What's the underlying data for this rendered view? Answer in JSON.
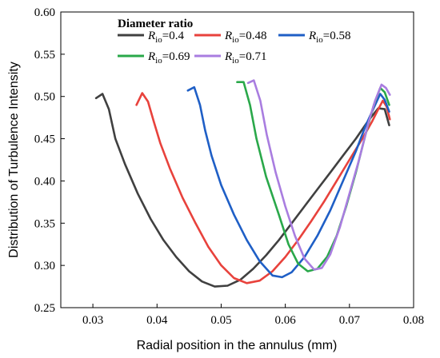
{
  "chart_data": {
    "type": "line",
    "xlabel": "Radial position in the annulus (mm)",
    "ylabel": "Distribution of Turbulence Intensity",
    "xlim": [
      0.025,
      0.08
    ],
    "ylim": [
      0.25,
      0.6
    ],
    "x_ticks": [
      "0.03",
      "0.04",
      "0.05",
      "0.06",
      "0.07",
      "0.08"
    ],
    "y_ticks": [
      "0.25",
      "0.30",
      "0.35",
      "0.40",
      "0.45",
      "0.50",
      "0.55",
      "0.60"
    ],
    "grid": false,
    "legend": {
      "title": "Diameter ratio",
      "placement": "top-left",
      "rows": [
        [
          "Rio=0.4",
          "Rio=0.48",
          "Rio=0.58"
        ],
        [
          "Rio=0.69",
          "Rio=0.71"
        ]
      ]
    },
    "series": [
      {
        "name": "Rio=0.4",
        "label_main": "R",
        "label_sub": "io",
        "label_value": "=0.4",
        "color": "#404040",
        "points": [
          [
            0.0305,
            0.498
          ],
          [
            0.0315,
            0.503
          ],
          [
            0.0325,
            0.485
          ],
          [
            0.0335,
            0.45
          ],
          [
            0.035,
            0.42
          ],
          [
            0.037,
            0.385
          ],
          [
            0.039,
            0.355
          ],
          [
            0.041,
            0.33
          ],
          [
            0.043,
            0.31
          ],
          [
            0.045,
            0.293
          ],
          [
            0.047,
            0.281
          ],
          [
            0.049,
            0.275
          ],
          [
            0.051,
            0.276
          ],
          [
            0.053,
            0.283
          ],
          [
            0.055,
            0.296
          ],
          [
            0.057,
            0.312
          ],
          [
            0.059,
            0.33
          ],
          [
            0.061,
            0.35
          ],
          [
            0.063,
            0.37
          ],
          [
            0.065,
            0.39
          ],
          [
            0.067,
            0.41
          ],
          [
            0.069,
            0.43
          ],
          [
            0.071,
            0.45
          ],
          [
            0.073,
            0.472
          ],
          [
            0.0745,
            0.486
          ],
          [
            0.0755,
            0.485
          ],
          [
            0.0762,
            0.466
          ]
        ]
      },
      {
        "name": "Rio=0.48",
        "label_main": "R",
        "label_sub": "io",
        "label_value": "=0.48",
        "color": "#e8423c",
        "points": [
          [
            0.0368,
            0.49
          ],
          [
            0.0377,
            0.504
          ],
          [
            0.0386,
            0.494
          ],
          [
            0.0395,
            0.47
          ],
          [
            0.0405,
            0.445
          ],
          [
            0.042,
            0.415
          ],
          [
            0.044,
            0.38
          ],
          [
            0.046,
            0.35
          ],
          [
            0.048,
            0.322
          ],
          [
            0.05,
            0.3
          ],
          [
            0.052,
            0.285
          ],
          [
            0.054,
            0.279
          ],
          [
            0.056,
            0.282
          ],
          [
            0.058,
            0.293
          ],
          [
            0.06,
            0.31
          ],
          [
            0.062,
            0.33
          ],
          [
            0.064,
            0.352
          ],
          [
            0.066,
            0.375
          ],
          [
            0.068,
            0.4
          ],
          [
            0.07,
            0.425
          ],
          [
            0.072,
            0.45
          ],
          [
            0.0735,
            0.47
          ],
          [
            0.0745,
            0.485
          ],
          [
            0.0752,
            0.495
          ],
          [
            0.0758,
            0.488
          ],
          [
            0.0763,
            0.473
          ]
        ]
      },
      {
        "name": "Rio=0.58",
        "label_main": "R",
        "label_sub": "io",
        "label_value": "=0.58",
        "color": "#1f5fc6",
        "points": [
          [
            0.0448,
            0.507
          ],
          [
            0.0458,
            0.511
          ],
          [
            0.0467,
            0.49
          ],
          [
            0.0475,
            0.46
          ],
          [
            0.0485,
            0.43
          ],
          [
            0.05,
            0.395
          ],
          [
            0.052,
            0.36
          ],
          [
            0.054,
            0.33
          ],
          [
            0.056,
            0.305
          ],
          [
            0.058,
            0.288
          ],
          [
            0.0595,
            0.286
          ],
          [
            0.061,
            0.292
          ],
          [
            0.063,
            0.31
          ],
          [
            0.065,
            0.335
          ],
          [
            0.067,
            0.365
          ],
          [
            0.069,
            0.4
          ],
          [
            0.071,
            0.435
          ],
          [
            0.0725,
            0.465
          ],
          [
            0.074,
            0.49
          ],
          [
            0.0748,
            0.503
          ],
          [
            0.0755,
            0.496
          ],
          [
            0.0762,
            0.482
          ]
        ]
      },
      {
        "name": "Rio=0.69",
        "label_main": "R",
        "label_sub": "io",
        "label_value": "=0.69",
        "color": "#2aa84a",
        "points": [
          [
            0.0525,
            0.517
          ],
          [
            0.0535,
            0.517
          ],
          [
            0.0545,
            0.49
          ],
          [
            0.0555,
            0.45
          ],
          [
            0.057,
            0.405
          ],
          [
            0.059,
            0.36
          ],
          [
            0.0605,
            0.325
          ],
          [
            0.062,
            0.302
          ],
          [
            0.0635,
            0.293
          ],
          [
            0.065,
            0.296
          ],
          [
            0.0665,
            0.31
          ],
          [
            0.068,
            0.335
          ],
          [
            0.0695,
            0.37
          ],
          [
            0.071,
            0.41
          ],
          [
            0.0725,
            0.455
          ],
          [
            0.0738,
            0.49
          ],
          [
            0.0748,
            0.51
          ],
          [
            0.0755,
            0.505
          ],
          [
            0.0762,
            0.49
          ]
        ]
      },
      {
        "name": "Rio=0.71",
        "label_main": "R",
        "label_sub": "io",
        "label_value": "=0.71",
        "color": "#a97de0",
        "points": [
          [
            0.0542,
            0.516
          ],
          [
            0.0551,
            0.519
          ],
          [
            0.0561,
            0.495
          ],
          [
            0.0571,
            0.455
          ],
          [
            0.0585,
            0.41
          ],
          [
            0.06,
            0.37
          ],
          [
            0.0615,
            0.335
          ],
          [
            0.063,
            0.308
          ],
          [
            0.0645,
            0.295
          ],
          [
            0.0657,
            0.297
          ],
          [
            0.067,
            0.313
          ],
          [
            0.0685,
            0.345
          ],
          [
            0.07,
            0.385
          ],
          [
            0.0715,
            0.425
          ],
          [
            0.073,
            0.47
          ],
          [
            0.074,
            0.495
          ],
          [
            0.075,
            0.514
          ],
          [
            0.0757,
            0.51
          ],
          [
            0.0763,
            0.502
          ]
        ]
      }
    ]
  }
}
